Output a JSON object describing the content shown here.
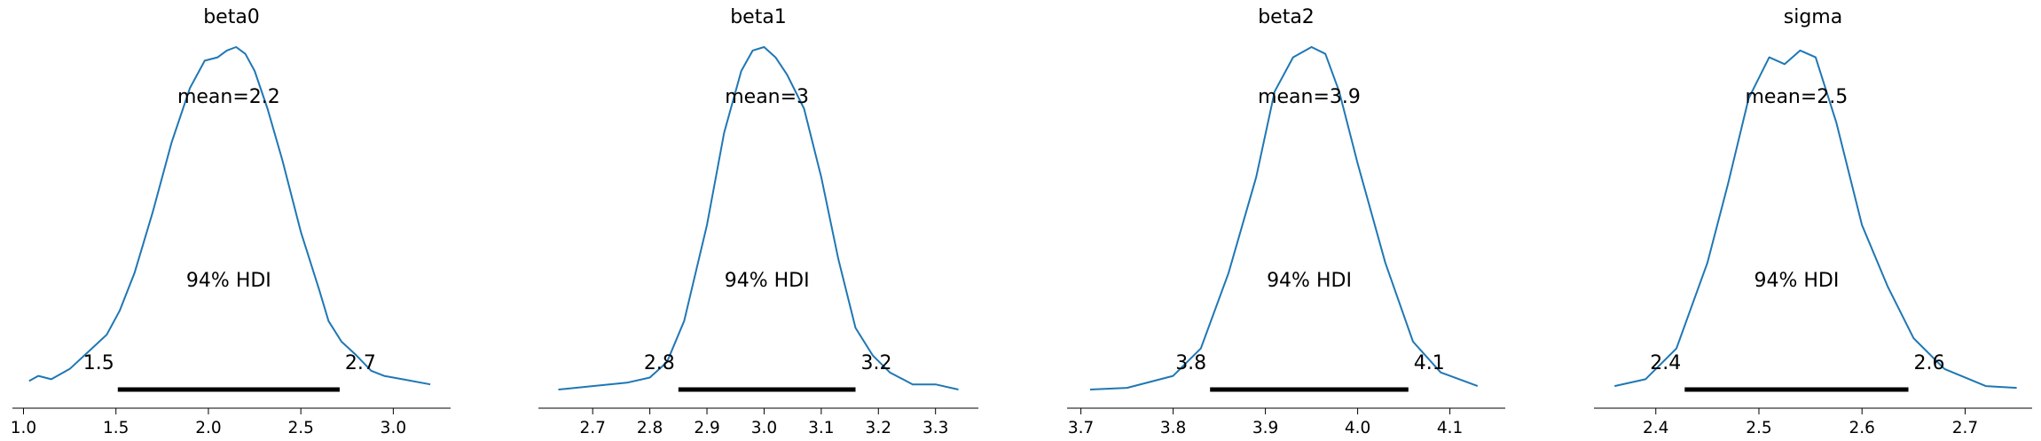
{
  "chart_data": [
    {
      "type": "line",
      "title": "beta0",
      "mean_label": "mean=2.2",
      "hdi_label": "94% HDI",
      "hdi_low": 1.51,
      "hdi_high": 2.71,
      "hdi_low_label": "1.5",
      "hdi_high_label": "2.7",
      "xlim": [
        0.94,
        3.31
      ],
      "ticks": [
        1.0,
        1.5,
        2.0,
        2.5,
        3.0
      ],
      "tick_labels": [
        "1.0",
        "1.5",
        "2.0",
        "2.5",
        "3.0"
      ],
      "density": [
        [
          1.03,
          0.025
        ],
        [
          1.08,
          0.04
        ],
        [
          1.15,
          0.03
        ],
        [
          1.25,
          0.06
        ],
        [
          1.35,
          0.11
        ],
        [
          1.45,
          0.16
        ],
        [
          1.52,
          0.23
        ],
        [
          1.6,
          0.34
        ],
        [
          1.7,
          0.52
        ],
        [
          1.8,
          0.72
        ],
        [
          1.9,
          0.88
        ],
        [
          1.98,
          0.96
        ],
        [
          2.05,
          0.97
        ],
        [
          2.1,
          0.99
        ],
        [
          2.15,
          1.0
        ],
        [
          2.2,
          0.98
        ],
        [
          2.25,
          0.93
        ],
        [
          2.32,
          0.82
        ],
        [
          2.4,
          0.67
        ],
        [
          2.5,
          0.46
        ],
        [
          2.6,
          0.29
        ],
        [
          2.65,
          0.2
        ],
        [
          2.72,
          0.14
        ],
        [
          2.8,
          0.1
        ],
        [
          2.88,
          0.055
        ],
        [
          2.95,
          0.04
        ],
        [
          3.05,
          0.03
        ],
        [
          3.2,
          0.015
        ]
      ]
    },
    {
      "type": "line",
      "title": "beta1",
      "mean_label": "mean=3",
      "hdi_label": "94% HDI",
      "hdi_low": 2.85,
      "hdi_high": 3.16,
      "hdi_low_label": "2.8",
      "hdi_high_label": "3.2",
      "xlim": [
        2.605,
        3.375
      ],
      "ticks": [
        2.7,
        2.8,
        2.9,
        3.0,
        3.1,
        3.2,
        3.3
      ],
      "tick_labels": [
        "2.7",
        "2.8",
        "2.9",
        "3.0",
        "3.1",
        "3.2",
        "3.3"
      ],
      "density": [
        [
          2.64,
          0.0
        ],
        [
          2.7,
          0.01
        ],
        [
          2.76,
          0.02
        ],
        [
          2.8,
          0.035
        ],
        [
          2.83,
          0.08
        ],
        [
          2.86,
          0.2
        ],
        [
          2.9,
          0.48
        ],
        [
          2.93,
          0.75
        ],
        [
          2.96,
          0.93
        ],
        [
          2.98,
          0.99
        ],
        [
          3.0,
          1.0
        ],
        [
          3.02,
          0.97
        ],
        [
          3.04,
          0.92
        ],
        [
          3.07,
          0.82
        ],
        [
          3.1,
          0.62
        ],
        [
          3.13,
          0.38
        ],
        [
          3.16,
          0.18
        ],
        [
          3.19,
          0.1
        ],
        [
          3.22,
          0.05
        ],
        [
          3.26,
          0.015
        ],
        [
          3.3,
          0.015
        ],
        [
          3.34,
          0.0
        ]
      ]
    },
    {
      "type": "line",
      "title": "beta2",
      "mean_label": "mean=3.9",
      "hdi_label": "94% HDI",
      "hdi_low": 3.84,
      "hdi_high": 4.055,
      "hdi_low_label": "3.8",
      "hdi_high_label": "4.1",
      "xlim": [
        3.685,
        4.16
      ],
      "ticks": [
        3.7,
        3.8,
        3.9,
        4.0,
        4.1
      ],
      "tick_labels": [
        "3.7",
        "3.8",
        "3.9",
        "4.0",
        "4.1"
      ],
      "density": [
        [
          3.71,
          0.0
        ],
        [
          3.75,
          0.005
        ],
        [
          3.8,
          0.04
        ],
        [
          3.83,
          0.12
        ],
        [
          3.86,
          0.34
        ],
        [
          3.89,
          0.62
        ],
        [
          3.91,
          0.87
        ],
        [
          3.93,
          0.97
        ],
        [
          3.95,
          1.0
        ],
        [
          3.965,
          0.98
        ],
        [
          3.98,
          0.87
        ],
        [
          4.0,
          0.66
        ],
        [
          4.03,
          0.37
        ],
        [
          4.06,
          0.14
        ],
        [
          4.09,
          0.05
        ],
        [
          4.13,
          0.01
        ]
      ]
    },
    {
      "type": "line",
      "title": "sigma",
      "mean_label": "mean=2.5",
      "hdi_label": "94% HDI",
      "hdi_low": 2.428,
      "hdi_high": 2.645,
      "hdi_low_label": "2.4",
      "hdi_high_label": "2.6",
      "xlim": [
        2.34,
        2.765
      ],
      "ticks": [
        2.4,
        2.5,
        2.6,
        2.7
      ],
      "tick_labels": [
        "2.4",
        "2.5",
        "2.6",
        "2.7"
      ],
      "density": [
        [
          2.36,
          0.01
        ],
        [
          2.39,
          0.03
        ],
        [
          2.42,
          0.12
        ],
        [
          2.45,
          0.37
        ],
        [
          2.47,
          0.6
        ],
        [
          2.49,
          0.85
        ],
        [
          2.51,
          0.97
        ],
        [
          2.525,
          0.95
        ],
        [
          2.54,
          0.99
        ],
        [
          2.555,
          0.97
        ],
        [
          2.575,
          0.78
        ],
        [
          2.6,
          0.48
        ],
        [
          2.625,
          0.3
        ],
        [
          2.65,
          0.15
        ],
        [
          2.68,
          0.06
        ],
        [
          2.72,
          0.01
        ],
        [
          2.75,
          0.005
        ]
      ]
    }
  ],
  "line_color": "#1f77b4"
}
